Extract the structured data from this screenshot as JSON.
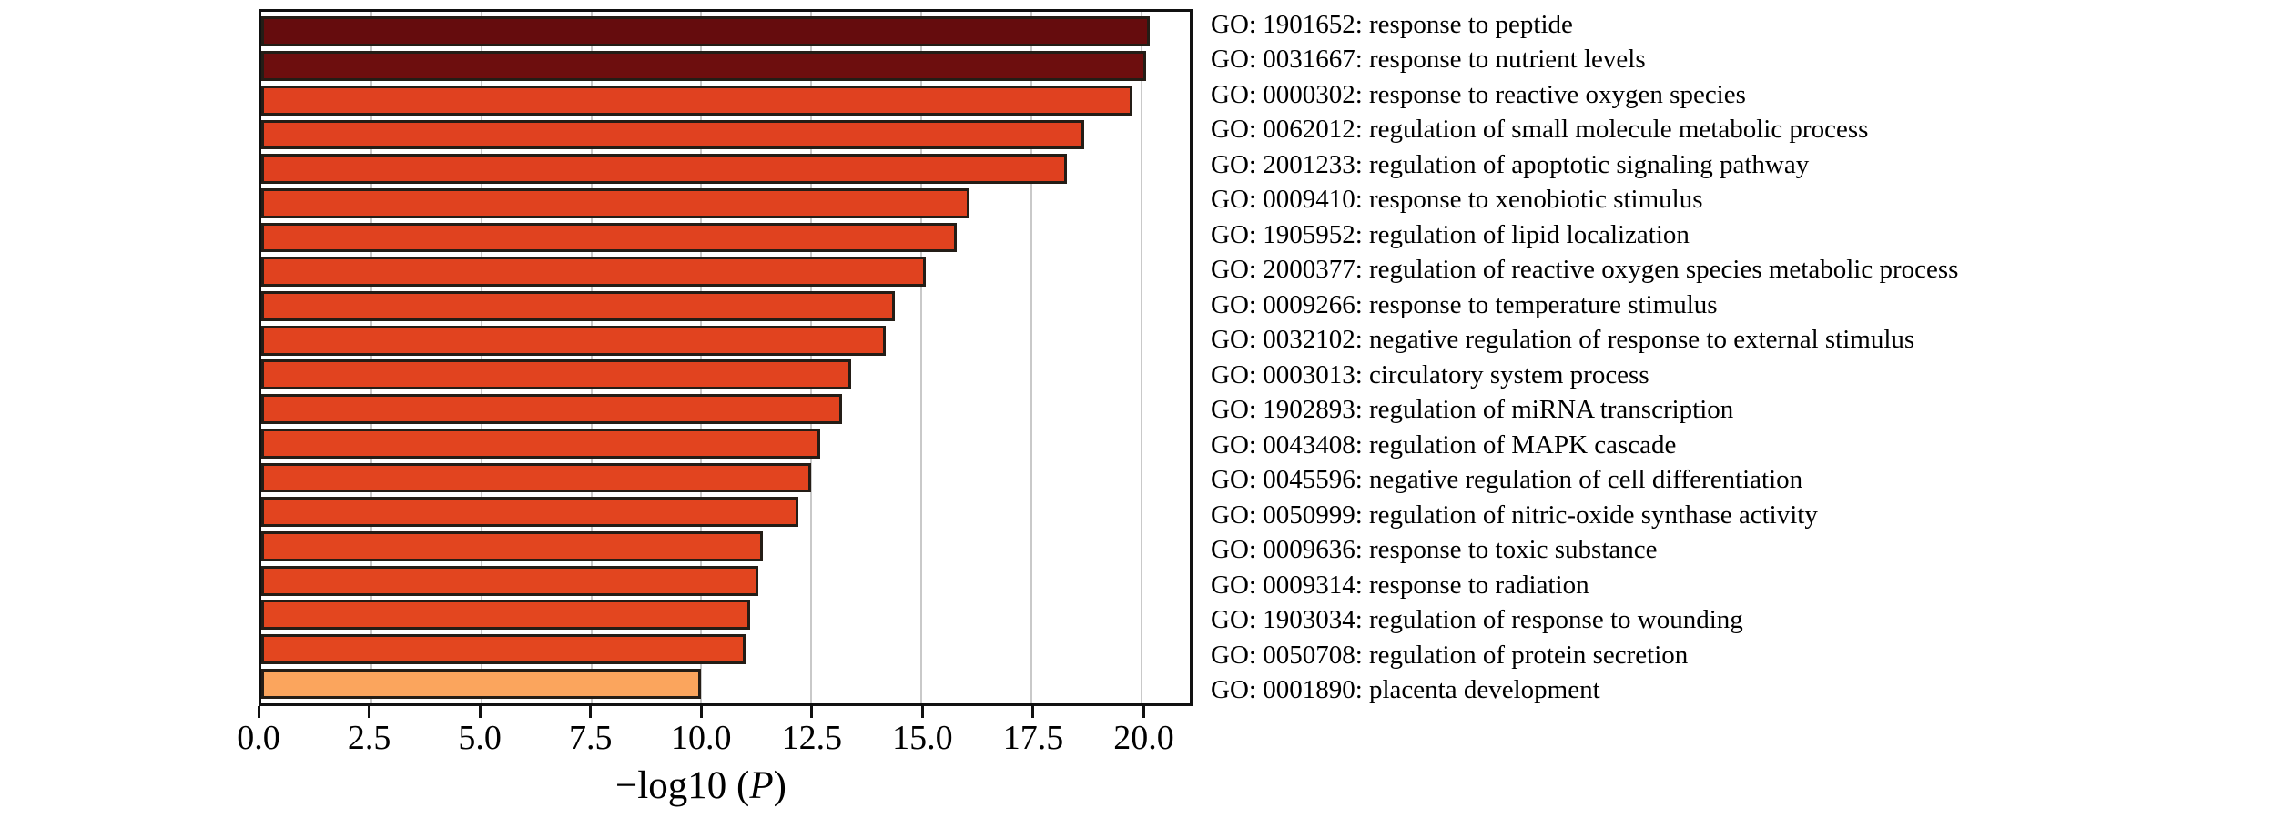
{
  "chart_data": {
    "type": "bar",
    "orientation": "horizontal",
    "title": "",
    "xlabel": "−log10 (P)",
    "xlabel_prefix": "−log10 (",
    "xlabel_italic": "P",
    "xlabel_suffix": ")",
    "ylabel": "",
    "xlim": [
      0,
      21.1
    ],
    "grid": true,
    "legend": "none",
    "xticks": [
      {
        "value": 0.0,
        "label": "0.0"
      },
      {
        "value": 2.5,
        "label": "2.5"
      },
      {
        "value": 5.0,
        "label": "5.0"
      },
      {
        "value": 7.5,
        "label": "7.5"
      },
      {
        "value": 10.0,
        "label": "10.0"
      },
      {
        "value": 12.5,
        "label": "12.5"
      },
      {
        "value": 15.0,
        "label": "15.0"
      },
      {
        "value": 17.5,
        "label": "17.5"
      },
      {
        "value": 20.0,
        "label": "20.0"
      }
    ],
    "bars": [
      {
        "label": "GO: 1901652: response to peptide",
        "value": 20.2,
        "color": "#650c0d"
      },
      {
        "label": "GO: 0031667: response to nutrient levels",
        "value": 20.1,
        "color": "#6d0e0e"
      },
      {
        "label": "GO: 0000302: response to reactive oxygen species",
        "value": 19.8,
        "color": "#e04120"
      },
      {
        "label": "GO: 0062012: regulation of small molecule metabolic process",
        "value": 18.7,
        "color": "#e04120"
      },
      {
        "label": "GO: 2001233: regulation of apoptotic signaling pathway",
        "value": 18.3,
        "color": "#df401f"
      },
      {
        "label": "GO: 0009410: response to xenobiotic stimulus",
        "value": 16.1,
        "color": "#e0421f"
      },
      {
        "label": "GO: 1905952: regulation of lipid localization",
        "value": 15.8,
        "color": "#e0421f"
      },
      {
        "label": "GO: 2000377: regulation of reactive oxygen species metabolic process",
        "value": 15.1,
        "color": "#e0421f"
      },
      {
        "label": "GO: 0009266: response to temperature stimulus",
        "value": 14.4,
        "color": "#e1431f"
      },
      {
        "label": "GO: 0032102: negative regulation of response to external stimulus",
        "value": 14.2,
        "color": "#e1431f"
      },
      {
        "label": "GO: 0003013: circulatory system process",
        "value": 13.4,
        "color": "#e1431f"
      },
      {
        "label": "GO: 1902893: regulation of miRNA transcription",
        "value": 13.2,
        "color": "#e1431f"
      },
      {
        "label": "GO: 0043408: regulation of MAPK cascade",
        "value": 12.7,
        "color": "#e2441f"
      },
      {
        "label": "GO: 0045596: negative regulation of cell differentiation",
        "value": 12.5,
        "color": "#e2441f"
      },
      {
        "label": "GO: 0050999: regulation of nitric-oxide synthase activity",
        "value": 12.2,
        "color": "#e2441f"
      },
      {
        "label": "GO: 0009636: response to toxic substance",
        "value": 11.4,
        "color": "#e2451f"
      },
      {
        "label": "GO: 0009314: response to radiation",
        "value": 11.3,
        "color": "#e2451f"
      },
      {
        "label": "GO: 1903034: regulation of response to wounding",
        "value": 11.1,
        "color": "#e3461f"
      },
      {
        "label": "GO: 0050708: regulation of protein secretion",
        "value": 11.0,
        "color": "#e3461f"
      },
      {
        "label": "GO: 0001890: placenta development",
        "value": 10.0,
        "color": "#fba55d"
      }
    ],
    "colors": {
      "bar_border": "#241d16",
      "frame": "#111111",
      "gridline": "#c9c9c9",
      "background": "#ffffff"
    }
  }
}
